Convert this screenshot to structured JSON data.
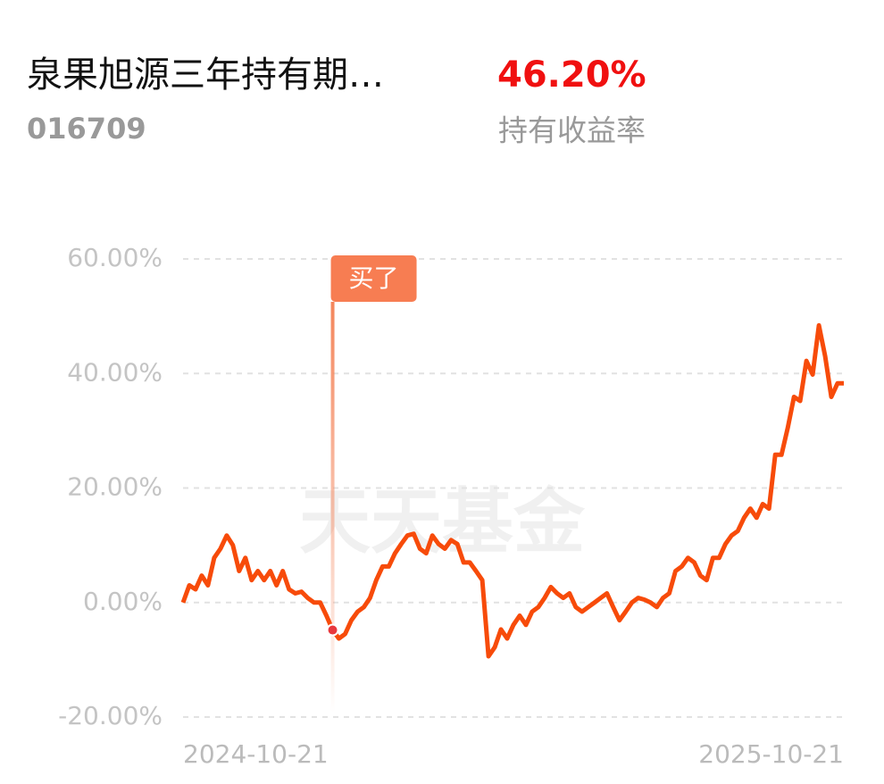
{
  "header": {
    "fund_name": "泉果旭源三年持有期…",
    "fund_code": "016709",
    "return_value": "46.20%",
    "return_label": "持有收益率"
  },
  "chart_data": {
    "type": "line",
    "watermark": "天天基金",
    "categories": [
      "2024-10-21",
      null,
      null,
      null,
      null,
      null,
      null,
      null,
      null,
      null,
      null,
      null,
      null,
      null,
      null,
      null,
      null,
      null,
      null,
      null,
      null,
      null,
      null,
      null,
      null,
      null,
      null,
      null,
      null,
      null,
      null,
      null,
      null,
      null,
      null,
      null,
      null,
      null,
      null,
      null,
      null,
      null,
      null,
      null,
      null,
      null,
      null,
      null,
      null,
      null,
      null,
      null,
      null,
      null,
      null,
      null,
      null,
      null,
      null,
      null,
      null,
      null,
      null,
      null,
      null,
      null,
      null,
      null,
      null,
      null,
      null,
      null,
      null,
      null,
      null,
      null,
      null,
      null,
      null,
      null,
      null,
      null,
      null,
      null,
      null,
      null,
      null,
      null,
      null,
      null,
      null,
      null,
      null,
      null,
      null,
      null,
      null,
      null,
      null,
      null,
      null,
      null,
      null,
      null,
      null,
      null,
      "2025-10-21"
    ],
    "series": [
      {
        "color": "#f74b0a",
        "values": [
          0,
          3,
          2.3,
          4.7,
          3,
          7.8,
          9.4,
          11.7,
          10,
          5.5,
          7.8,
          3.9,
          5.5,
          3.9,
          5.5,
          3,
          5.5,
          2.3,
          1.6,
          1.9,
          0.8,
          0,
          0,
          -2.3,
          -4.8,
          -6.3,
          -5.5,
          -3.1,
          -1.6,
          -0.8,
          0.8,
          3.9,
          6.3,
          6.3,
          8.6,
          10.2,
          11.7,
          12,
          9.4,
          8.6,
          11.7,
          10.2,
          9.4,
          10.9,
          10.2,
          7,
          7,
          5.5,
          3.9,
          -9.4,
          -7.8,
          -4.7,
          -6.3,
          -3.9,
          -2.3,
          -3.9,
          -1.6,
          -0.8,
          0.8,
          2.7,
          1.6,
          0.8,
          1.6,
          -0.8,
          -1.6,
          -0.8,
          0,
          0.8,
          1.6,
          -0.8,
          -3.1,
          -1.6,
          0,
          0.8,
          0.5,
          0,
          -0.8,
          0.8,
          1.6,
          5.5,
          6.3,
          7.8,
          7,
          4.7,
          3.9,
          7.8,
          7.8,
          10.2,
          11.7,
          12.5,
          14.8,
          16.4,
          14.8,
          17.2,
          16.4,
          25.8,
          25.8,
          30.5,
          35.9,
          35.2,
          42.2,
          39.8,
          48.4,
          43,
          35.9,
          38.3,
          38.3
        ]
      }
    ],
    "annotation": {
      "text": "买了",
      "index": 24
    },
    "ylim": [
      -20,
      60
    ],
    "yticks": [
      {
        "value": -20,
        "label": "-20.00%"
      },
      {
        "value": 0,
        "label": "0.00%"
      },
      {
        "value": 20,
        "label": "20.00%"
      },
      {
        "value": 40,
        "label": "40.00%"
      },
      {
        "value": 60,
        "label": "60.00%"
      }
    ],
    "grid": true
  }
}
